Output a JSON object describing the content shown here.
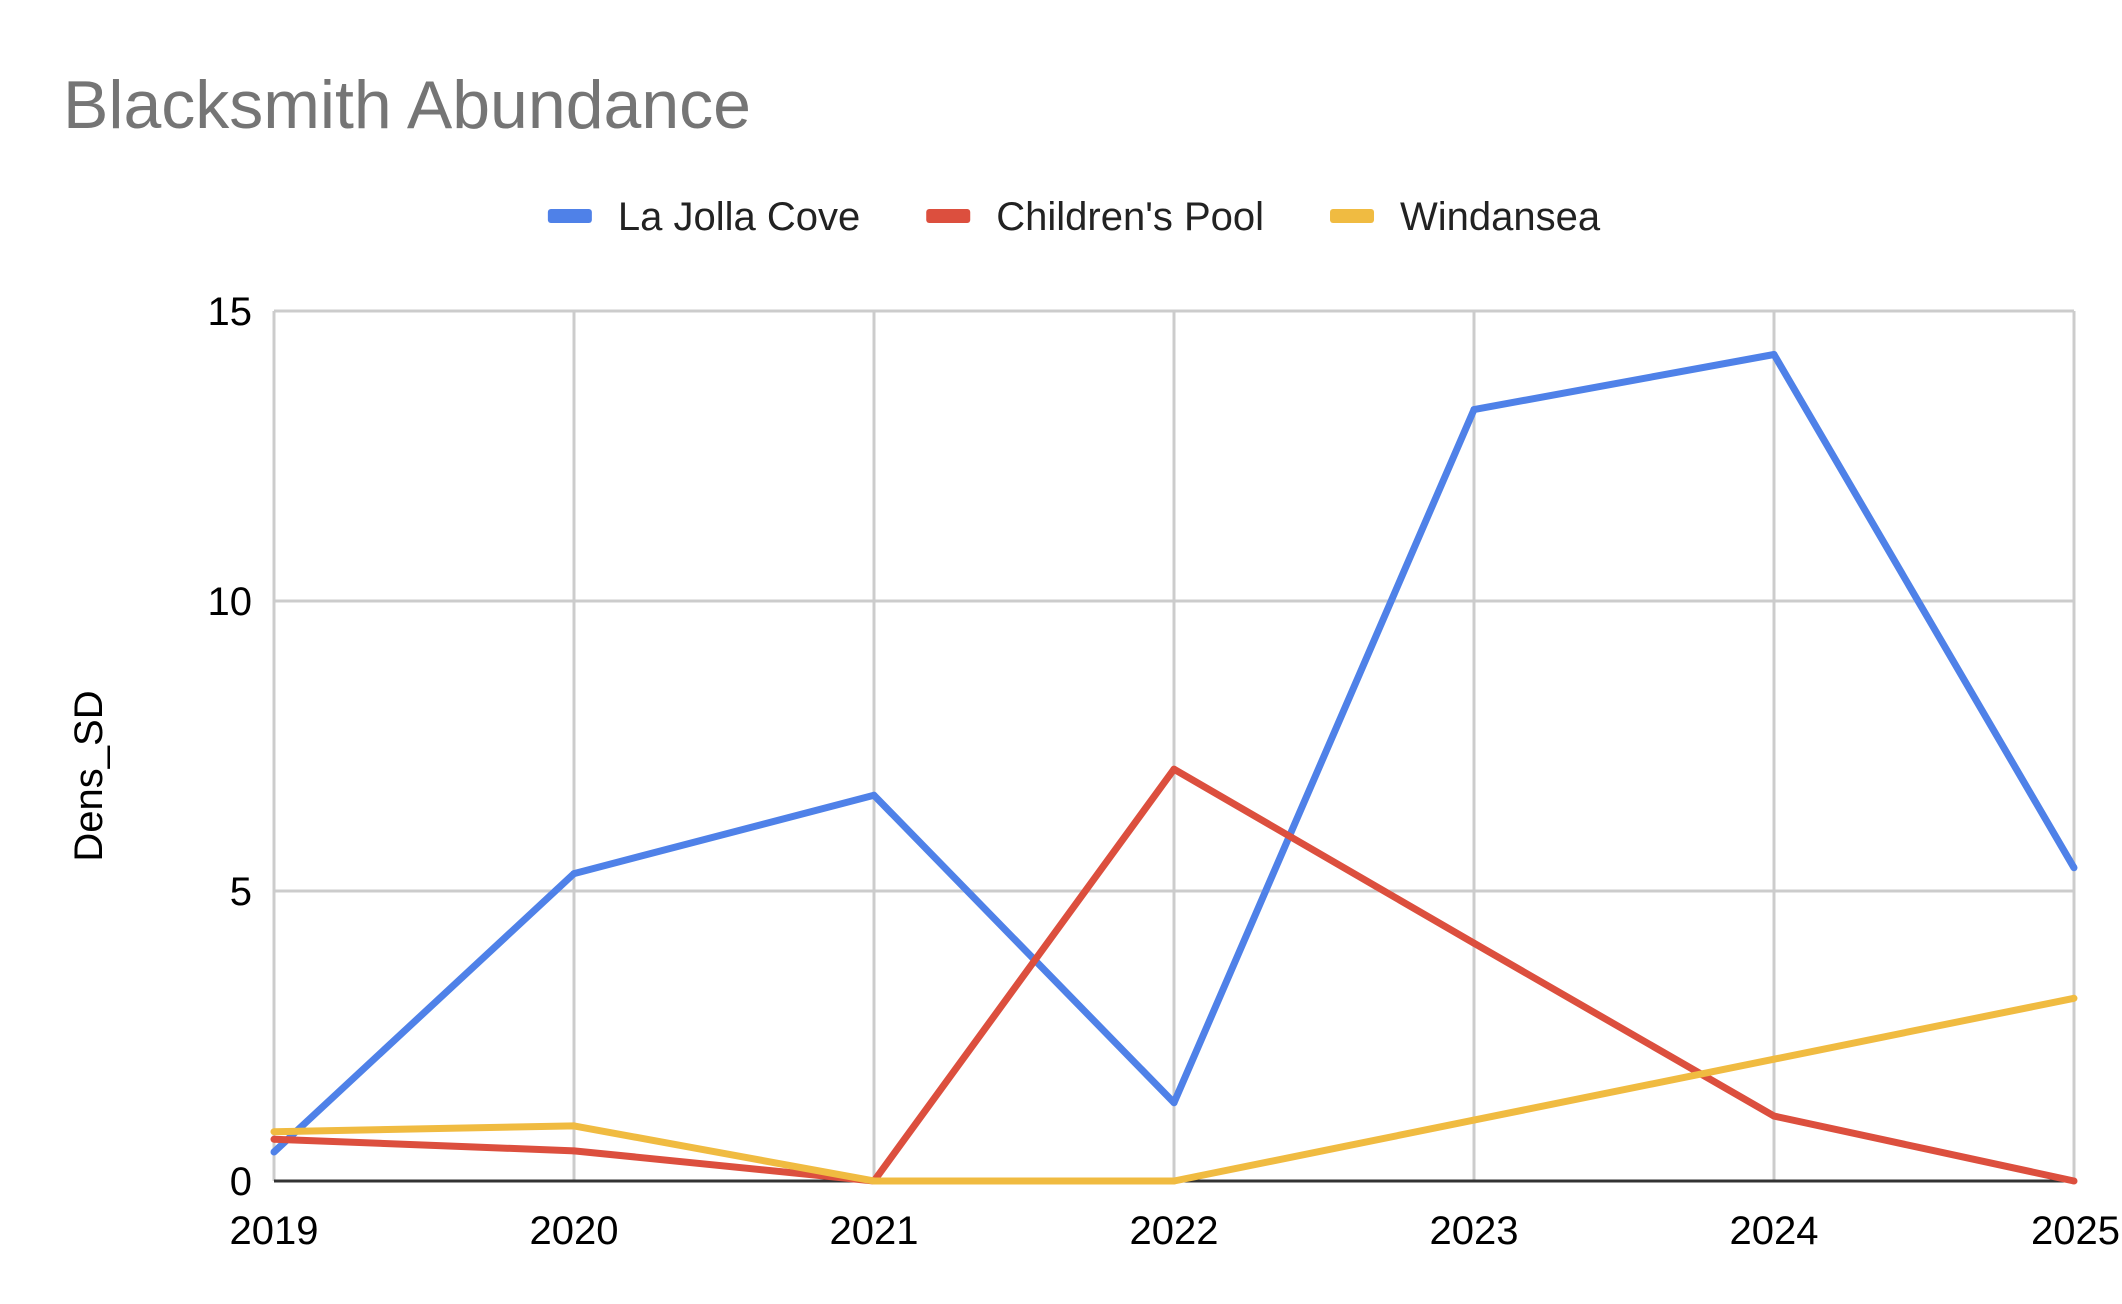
{
  "chart_data": {
    "type": "line",
    "title": "Blacksmith Abundance",
    "xlabel": "",
    "ylabel": "Dens_SD",
    "x": [
      "2019",
      "2020",
      "2021",
      "2022",
      "2023",
      "2024",
      "2025"
    ],
    "ylim": [
      0,
      15
    ],
    "yticks": [
      0,
      5,
      10,
      15
    ],
    "grid": true,
    "legend_position": "top",
    "series": [
      {
        "name": "La Jolla Cove",
        "color": "#4f81e8",
        "values": [
          0.5,
          5.3,
          6.65,
          1.35,
          13.3,
          14.25,
          5.4
        ]
      },
      {
        "name": "Children's Pool",
        "color": "#dc4f3e",
        "values": [
          0.72,
          0.52,
          0,
          7.1,
          4.1,
          1.12,
          0
        ]
      },
      {
        "name": "Windansea",
        "color": "#f0bb41",
        "values": [
          0.85,
          0.95,
          0,
          0,
          1.05,
          2.1,
          3.15
        ]
      }
    ]
  }
}
